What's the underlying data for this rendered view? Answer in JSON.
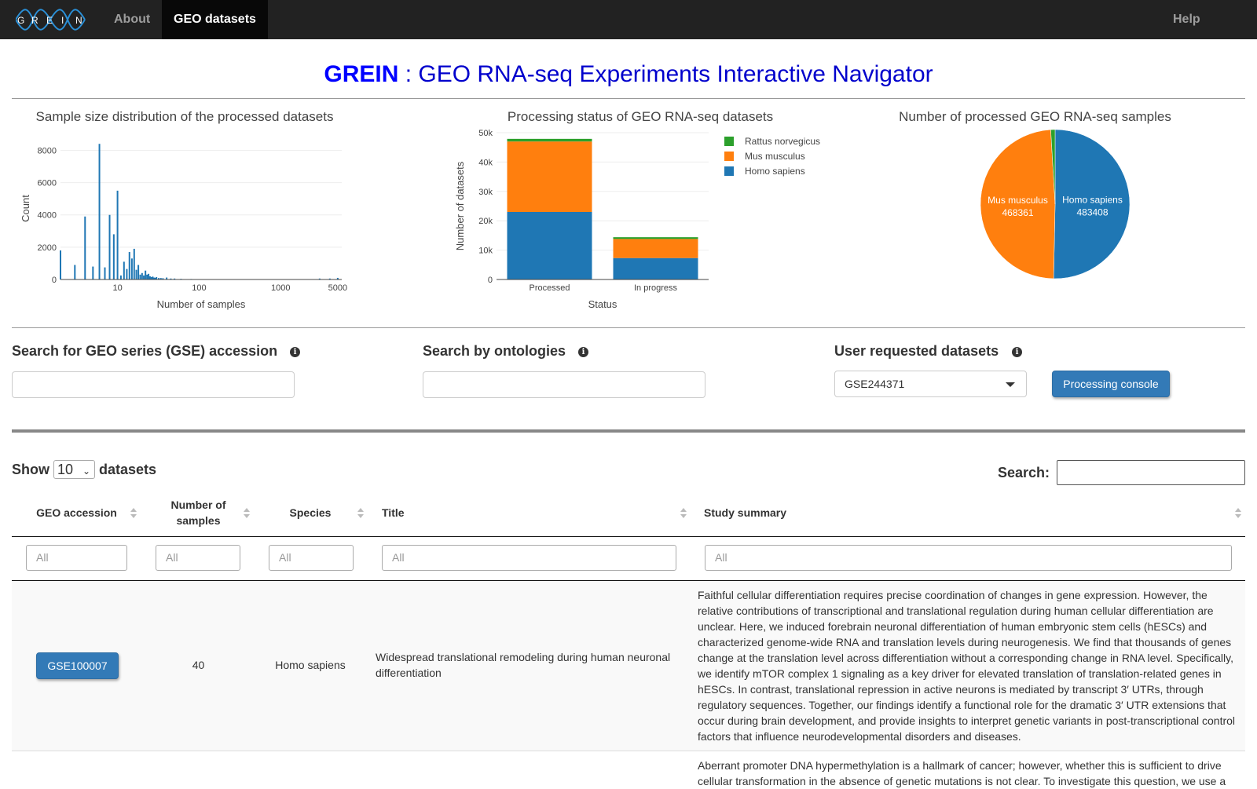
{
  "navbar": {
    "logo_letters": [
      "G",
      "R",
      "E",
      "I",
      "N"
    ],
    "items": [
      {
        "label": "About",
        "active": false
      },
      {
        "label": "GEO datasets",
        "active": true
      }
    ],
    "help_label": "Help"
  },
  "header": {
    "brand": "GREIN",
    "subtitle": " : GEO RNA-seq Experiments Interactive Navigator"
  },
  "charts": {
    "histogram_title": "Sample size distribution of the processed datasets",
    "bar_title": "Processing status of GEO RNA-seq datasets",
    "pie_title": "Number of processed GEO RNA-seq samples"
  },
  "chart_data": [
    {
      "type": "bar",
      "title": "Sample size distribution of the processed datasets",
      "xlabel": "Number of samples",
      "ylabel": "Count",
      "xscale": "log",
      "xlim": [
        2,
        5600
      ],
      "ylim": [
        0,
        8800
      ],
      "xticks": [
        "10",
        "100",
        "1000",
        "5000"
      ],
      "yticks": [
        "0",
        "2000",
        "4000",
        "6000",
        "8000"
      ],
      "grid": true,
      "x": [
        2,
        3,
        4,
        5,
        6,
        7,
        8,
        9,
        10,
        11,
        12,
        13,
        14,
        15,
        16,
        17,
        18,
        19,
        20,
        21,
        22,
        23,
        24,
        25,
        26,
        27,
        28,
        29,
        30,
        32,
        34,
        36,
        40,
        45,
        50,
        60,
        80,
        100,
        200,
        500,
        1000,
        2000,
        3000,
        4000,
        5000
      ],
      "values": [
        1800,
        900,
        3900,
        800,
        8400,
        750,
        4000,
        2800,
        5500,
        250,
        1100,
        650,
        1700,
        1300,
        1900,
        600,
        900,
        300,
        400,
        250,
        550,
        300,
        350,
        200,
        150,
        180,
        120,
        100,
        150,
        90,
        90,
        80,
        120,
        60,
        60,
        40,
        30,
        20,
        15,
        10,
        10,
        8,
        60,
        60,
        100
      ]
    },
    {
      "type": "bar",
      "stacked": true,
      "title": "Processing status of GEO RNA-seq datasets",
      "xlabel": "Status",
      "ylabel": "Number of datasets",
      "categories": [
        "Processed",
        "In progress"
      ],
      "ylim": [
        0,
        50000
      ],
      "yticks": [
        "0",
        "10k",
        "20k",
        "30k",
        "40k",
        "50k"
      ],
      "legend_position": "right",
      "series": [
        {
          "name": "Homo sapiens",
          "color": "#1f77b4",
          "values": [
            23000,
            7300
          ]
        },
        {
          "name": "Mus musculus",
          "color": "#ff7f0e",
          "values": [
            24000,
            6500
          ]
        },
        {
          "name": "Rattus norvegicus",
          "color": "#2ca02c",
          "values": [
            900,
            600
          ]
        }
      ]
    },
    {
      "type": "pie",
      "title": "Number of processed GEO RNA-seq samples",
      "labels": [
        "Homo sapiens",
        "Mus musculus",
        "Rattus norvegicus"
      ],
      "values": [
        483408,
        468361,
        9000
      ],
      "value_labels": [
        "483408",
        "468361",
        ""
      ],
      "colors": [
        "#1f77b4",
        "#ff7f0e",
        "#2ca02c"
      ]
    }
  ],
  "search": {
    "gse_label": "Search for GEO series (GSE) accession",
    "ontology_label": "Search by ontologies",
    "user_requested_label": "User requested datasets",
    "user_requested_selected": "GSE244371",
    "console_button": "Processing console"
  },
  "table_controls": {
    "show_label": "Show",
    "page_length": "10",
    "datasets_label": "datasets",
    "search_label": "Search:"
  },
  "table": {
    "columns": [
      {
        "line1": "GEO accession",
        "line2": ""
      },
      {
        "line1": "Number of",
        "line2": "samples"
      },
      {
        "line1": "Species",
        "line2": ""
      },
      {
        "line1": "Title",
        "line2": ""
      },
      {
        "line1": "Study summary",
        "line2": ""
      }
    ],
    "filter_placeholder": "All",
    "rows": [
      {
        "accession": "GSE100007",
        "samples": "40",
        "species": "Homo sapiens",
        "title": "Widespread translational remodeling during human neuronal differentiation",
        "summary": "Faithful cellular differentiation requires precise coordination of changes in gene expression. However, the relative contributions of transcriptional and translational regulation during human cellular differentiation are unclear. Here, we induced forebrain neuronal differentiation of human embryonic stem cells (hESCs) and characterized genome-wide RNA and translation levels during neurogenesis. We find that thousands of genes change at the translation level across differentiation without a corresponding change in RNA level. Specifically, we identify mTOR complex 1 signaling as a key driver for elevated translation of translation-related genes in hESCs. In contrast, translational repression in active neurons is mediated by transcript 3′ UTRs, through regulatory sequences. Together, our findings identify a functional role for the dramatic 3′ UTR extensions that occur during brain development, and provide insights to interpret genetic variants in post-transcriptional control factors that influence neurodevelopmental disorders and diseases."
      },
      {
        "summary": "Aberrant promoter DNA hypermethylation is a hallmark of cancer; however, whether this is sufficient to drive cellular transformation in the absence of genetic mutations is not clear. To investigate this question, we use a"
      }
    ]
  }
}
